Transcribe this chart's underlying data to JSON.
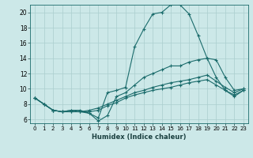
{
  "xlabel": "Humidex (Indice chaleur)",
  "ylabel": "",
  "bg_color": "#cce8e8",
  "grid_color": "#aacece",
  "line_color": "#1a6b6b",
  "xlim": [
    -0.5,
    23.5
  ],
  "ylim": [
    5.5,
    21.0
  ],
  "xticks": [
    0,
    1,
    2,
    3,
    4,
    5,
    6,
    7,
    8,
    9,
    10,
    11,
    12,
    13,
    14,
    15,
    16,
    17,
    18,
    19,
    20,
    21,
    22,
    23
  ],
  "yticks": [
    6,
    8,
    10,
    12,
    14,
    16,
    18,
    20
  ],
  "lines": [
    {
      "x": [
        0,
        1,
        2,
        3,
        4,
        5,
        6,
        7,
        8,
        9,
        10,
        11,
        12,
        13,
        14,
        15,
        16,
        17,
        18,
        19,
        20,
        21,
        22,
        23
      ],
      "y": [
        8.8,
        8.0,
        7.2,
        7.0,
        7.2,
        7.2,
        6.8,
        6.2,
        9.5,
        9.8,
        10.2,
        15.5,
        17.8,
        19.8,
        20.0,
        21.0,
        21.0,
        19.8,
        17.0,
        14.0,
        13.8,
        11.5,
        9.8,
        10.0
      ]
    },
    {
      "x": [
        0,
        1,
        2,
        3,
        4,
        5,
        6,
        7,
        8,
        9,
        10,
        11,
        12,
        13,
        14,
        15,
        16,
        17,
        18,
        19,
        20,
        21,
        22,
        23
      ],
      "y": [
        8.8,
        8.0,
        7.2,
        7.0,
        7.2,
        7.0,
        6.8,
        5.8,
        6.5,
        9.0,
        9.5,
        10.5,
        11.5,
        12.0,
        12.5,
        13.0,
        13.0,
        13.5,
        13.8,
        14.0,
        11.5,
        9.8,
        9.0,
        9.8
      ]
    },
    {
      "x": [
        0,
        1,
        2,
        3,
        4,
        5,
        6,
        7,
        8,
        9,
        10,
        11,
        12,
        13,
        14,
        15,
        16,
        17,
        18,
        19,
        20,
        21,
        22,
        23
      ],
      "y": [
        8.8,
        8.0,
        7.2,
        7.0,
        7.0,
        7.0,
        7.0,
        7.2,
        7.8,
        8.2,
        8.8,
        9.2,
        9.5,
        9.8,
        10.0,
        10.2,
        10.5,
        10.8,
        11.0,
        11.2,
        10.5,
        9.8,
        9.2,
        9.8
      ]
    },
    {
      "x": [
        0,
        1,
        2,
        3,
        4,
        5,
        6,
        7,
        8,
        9,
        10,
        11,
        12,
        13,
        14,
        15,
        16,
        17,
        18,
        19,
        20,
        21,
        22,
        23
      ],
      "y": [
        8.8,
        8.0,
        7.2,
        7.0,
        7.0,
        7.0,
        7.2,
        7.5,
        8.0,
        8.5,
        9.0,
        9.5,
        9.8,
        10.2,
        10.5,
        10.8,
        11.0,
        11.2,
        11.5,
        11.8,
        11.0,
        10.2,
        9.5,
        10.0
      ]
    }
  ]
}
